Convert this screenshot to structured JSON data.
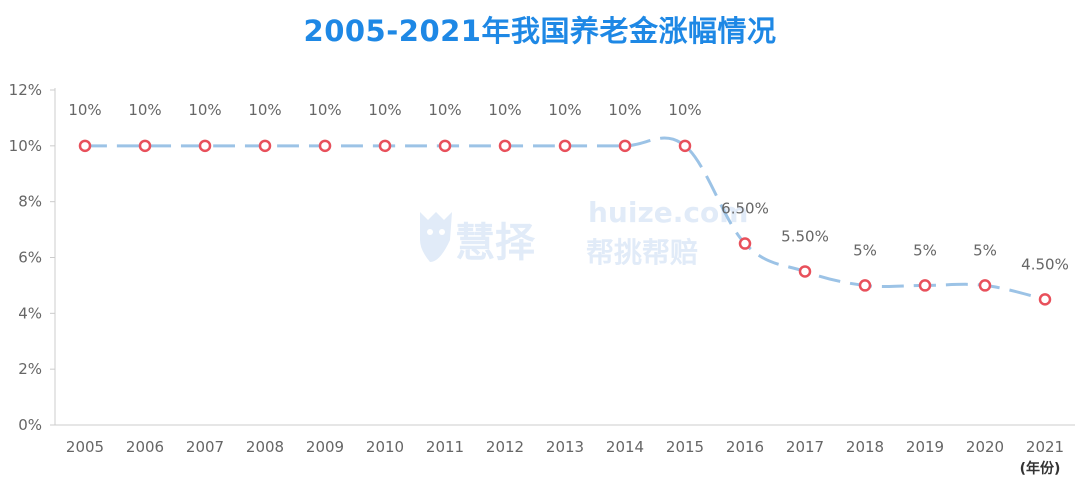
{
  "chart_data": {
    "type": "line",
    "title": "2005-2021年我国养老金涨幅情况",
    "xlabel": "(年份)",
    "ylabel": "",
    "categories": [
      "2005",
      "2006",
      "2007",
      "2008",
      "2009",
      "2010",
      "2011",
      "2012",
      "2013",
      "2014",
      "2015",
      "2016",
      "2017",
      "2018",
      "2019",
      "2020",
      "2021"
    ],
    "series": [
      {
        "values": [
          10,
          10,
          10,
          10,
          10,
          10,
          10,
          10,
          10,
          10,
          10,
          6.5,
          5.5,
          5,
          5,
          5,
          4.5
        ],
        "data_labels": [
          "10%",
          "10%",
          "10%",
          "10%",
          "10%",
          "10%",
          "10%",
          "10%",
          "10%",
          "10%",
          "10%",
          "6.50%",
          "5.50%",
          "5%",
          "5%",
          "5%",
          "4.50%"
        ]
      }
    ],
    "ylim": [
      0,
      12
    ],
    "yticks": [
      "0%",
      "2%",
      "4%",
      "6%",
      "8%",
      "10%",
      "12%"
    ],
    "grid": false,
    "line_style": "dashed",
    "line_color": "#9cc3e6",
    "marker_color": "#e8505b"
  },
  "watermark": {
    "brand_cn": "慧择",
    "domain": "huize.com",
    "slogan": "帮挑帮赔"
  }
}
